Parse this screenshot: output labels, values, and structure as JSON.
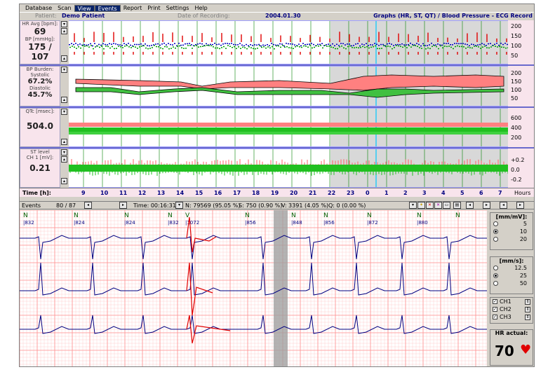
{
  "menu": [
    "Database",
    "Scan",
    "View",
    "Events",
    "Report",
    "Print",
    "Settings",
    "Help"
  ],
  "info": {
    "patient_label": "Patient:",
    "patient_value": "Demo Patient",
    "date_label": "Date of Recording:",
    "date_value": "2004.01.30",
    "graphs_title": "Graphs (HR, ST, QT) / Blood Pressure - ECG Record"
  },
  "panels": {
    "hr": {
      "label1": "HR Avg [bpm]:",
      "value1": "69",
      "label2": "BP [mmHg]:",
      "value2": "175 / 107",
      "ticks": [
        "200",
        "150",
        "100",
        "50"
      ]
    },
    "burden": {
      "label": "BP Burden:",
      "sys_label": "Systolic",
      "sys_value": "67.2%",
      "dia_label": "Diastolic",
      "dia_value": "45.7%",
      "ticks": [
        "200",
        "150",
        "100",
        "50"
      ]
    },
    "qtc": {
      "label": "QTc [msec]:",
      "value": "504.0",
      "ticks": [
        "600",
        "400",
        "200"
      ]
    },
    "st": {
      "label": "ST level",
      "label2": "CH 1 [mV]:",
      "value": "0.21",
      "ticks": [
        "+0.2",
        "0.0",
        "-0.2"
      ]
    }
  },
  "time": {
    "label": "Time [h]:",
    "ticks": [
      "9",
      "10",
      "11",
      "12",
      "13",
      "14",
      "15",
      "16",
      "17",
      "18",
      "19",
      "20",
      "21",
      "22",
      "23",
      "0",
      "1",
      "2",
      "3",
      "4",
      "5",
      "6",
      "7"
    ],
    "unit": "Hours"
  },
  "toolbar": {
    "events": "Events",
    "events_count": "80 / 87",
    "time": "Time: 00:16:31",
    "n_count": "N: 79569 (95.05 %)",
    "s_count": "S: 750 (0.90 %)",
    "v_count": "V: 3391 (4.05 %)",
    "q_count": "Q: 0 (0.00 %)"
  },
  "ecg_beats": [
    "N",
    "N",
    "N",
    "N",
    "V",
    "N",
    "N",
    "N",
    "N",
    "N",
    "N"
  ],
  "ecg_rr": [
    "832",
    "824",
    "824",
    "832",
    "1072",
    "856",
    "848",
    "856",
    "872",
    "880",
    ""
  ],
  "side": {
    "gain_title": "[mm/mV]:",
    "gain": [
      "5",
      "10",
      "20"
    ],
    "speed_title": "[mm/s]:",
    "speed": [
      "12.5",
      "25",
      "50"
    ],
    "channels": [
      "CH1",
      "CH2",
      "CH3"
    ],
    "hr_title": "HR actual:",
    "hr_value": "70"
  },
  "colors": {
    "red": "#e00000",
    "green": "#00b000",
    "blue": "#000080",
    "grid": "#ffb0b0"
  }
}
